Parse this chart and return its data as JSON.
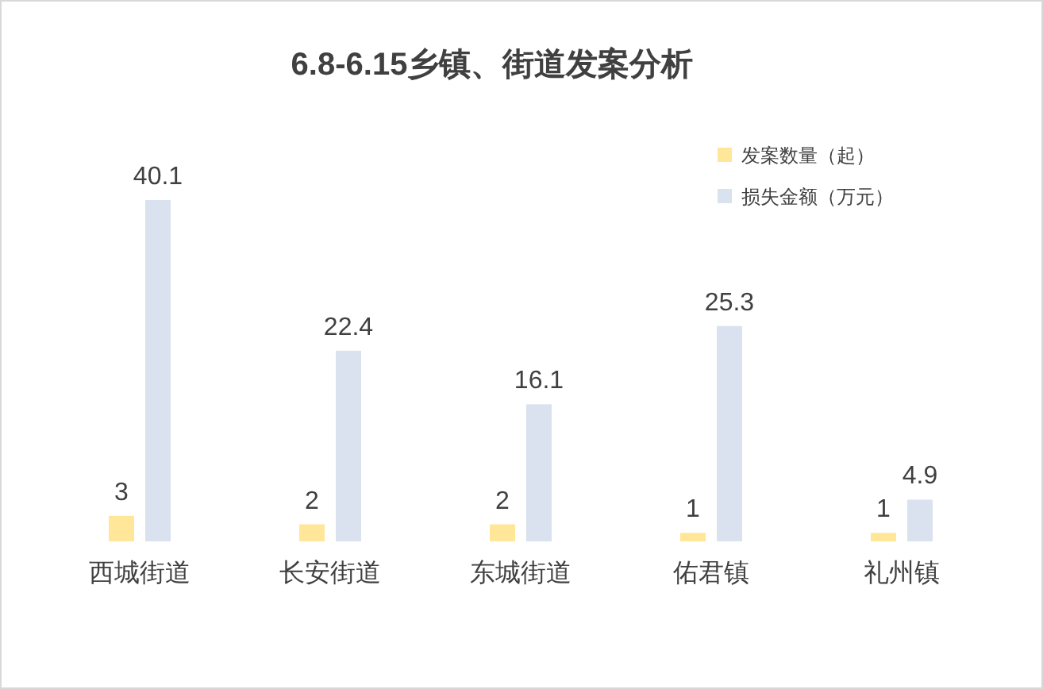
{
  "chart_data": {
    "type": "bar",
    "title": "6.8-6.15乡镇、街道发案分析",
    "categories": [
      "西城街道",
      "长安街道",
      "东城街道",
      "佑君镇",
      "礼州镇"
    ],
    "series": [
      {
        "name": "发案数量（起）",
        "color": "#ffe699",
        "values": [
          3,
          2,
          2,
          1,
          1
        ]
      },
      {
        "name": "损失金额（万元）",
        "color": "#dae1ef",
        "values": [
          40.1,
          22.4,
          16.1,
          25.3,
          4.9
        ]
      }
    ],
    "data_labels": true,
    "legend": "top right"
  }
}
